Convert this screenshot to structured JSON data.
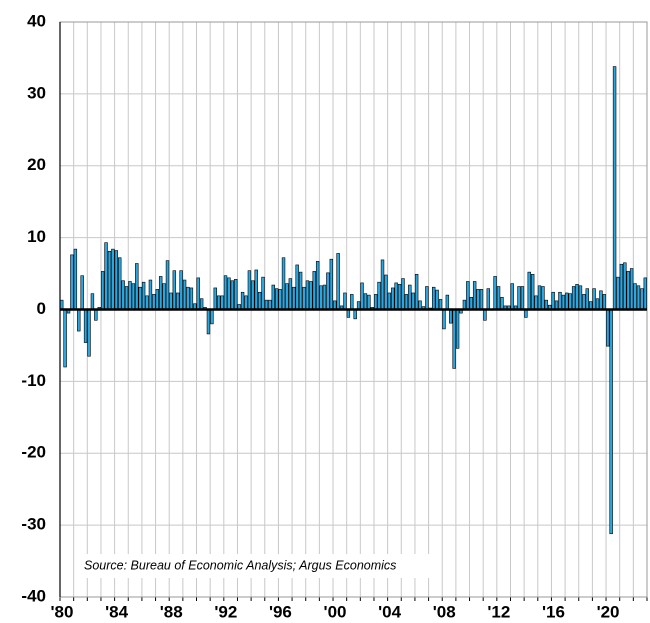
{
  "chart_data": {
    "type": "bar",
    "categories": [
      "'80",
      null,
      null,
      null,
      null,
      null,
      null,
      null,
      null,
      null,
      null,
      null,
      null,
      null,
      null,
      null,
      "'84",
      null,
      null,
      null,
      null,
      null,
      null,
      null,
      null,
      null,
      null,
      null,
      null,
      null,
      null,
      null,
      "'88",
      null,
      null,
      null,
      null,
      null,
      null,
      null,
      null,
      null,
      null,
      null,
      null,
      null,
      null,
      null,
      "'92",
      null,
      null,
      null,
      null,
      null,
      null,
      null,
      null,
      null,
      null,
      null,
      null,
      null,
      null,
      null,
      "'96",
      null,
      null,
      null,
      null,
      null,
      null,
      null,
      null,
      null,
      null,
      null,
      null,
      null,
      null,
      null,
      "'00",
      null,
      null,
      null,
      null,
      null,
      null,
      null,
      null,
      null,
      null,
      null,
      null,
      null,
      null,
      null,
      "'04",
      null,
      null,
      null,
      null,
      null,
      null,
      null,
      null,
      null,
      null,
      null,
      null,
      null,
      null,
      null,
      "'08",
      null,
      null,
      null,
      null,
      null,
      null,
      null,
      null,
      null,
      null,
      null,
      null,
      null,
      null,
      null,
      "'12",
      null,
      null,
      null,
      null,
      null,
      null,
      null,
      null,
      null,
      null,
      null,
      null,
      null,
      null,
      null,
      "'16",
      null,
      null,
      null,
      null,
      null,
      null,
      null,
      null,
      null,
      null,
      null,
      null,
      null,
      null,
      null,
      "'20",
      null,
      null,
      null,
      null,
      null,
      null,
      null,
      null,
      null,
      null,
      null
    ],
    "values": [
      1.3,
      -8.0,
      -0.5,
      7.6,
      8.4,
      -3.0,
      4.7,
      -4.6,
      -6.5,
      2.2,
      -1.5,
      0.3,
      5.3,
      9.3,
      8.1,
      8.4,
      8.2,
      7.2,
      4.0,
      3.2,
      3.9,
      3.6,
      6.4,
      3.1,
      3.8,
      1.9,
      4.1,
      2.1,
      2.8,
      4.6,
      3.6,
      6.8,
      2.3,
      5.4,
      2.3,
      5.4,
      4.1,
      3.1,
      3.0,
      0.8,
      4.4,
      1.5,
      0.3,
      -3.4,
      -2.0,
      3.0,
      1.9,
      1.9,
      4.7,
      4.4,
      4.0,
      4.2,
      0.7,
      2.4,
      1.9,
      5.4,
      4.0,
      5.5,
      2.4,
      4.5,
      1.3,
      1.3,
      3.4,
      2.9,
      2.8,
      7.2,
      3.6,
      4.3,
      3.1,
      6.2,
      5.2,
      3.1,
      4.0,
      3.9,
      5.3,
      6.7,
      3.3,
      3.4,
      5.1,
      7.0,
      1.2,
      7.8,
      0.5,
      2.3,
      -1.1,
      2.1,
      -1.3,
      1.1,
      3.7,
      2.2,
      2.0,
      0.3,
      2.1,
      3.8,
      6.9,
      4.8,
      2.3,
      3.0,
      3.7,
      3.5,
      4.3,
      2.1,
      3.4,
      2.3,
      4.9,
      1.2,
      0.4,
      3.2,
      0.2,
      3.1,
      2.7,
      1.4,
      -2.7,
      2.0,
      -1.9,
      -8.2,
      -5.4,
      -0.5,
      1.3,
      3.9,
      1.7,
      3.9,
      2.8,
      2.8,
      -1.5,
      2.9,
      -0.1,
      4.6,
      3.2,
      1.7,
      0.5,
      0.5,
      3.6,
      0.5,
      3.2,
      3.2,
      -1.1,
      5.2,
      4.9,
      1.9,
      3.3,
      3.2,
      1.3,
      0.6,
      2.4,
      1.2,
      2.4,
      2.0,
      2.3,
      2.2,
      3.2,
      3.5,
      3.3,
      2.1,
      2.9,
      1.1,
      2.9,
      1.5,
      2.6,
      2.1,
      -5.1,
      -31.2,
      33.8,
      4.5,
      6.3,
      6.5,
      5.3,
      5.7,
      3.6,
      3.3,
      2.9,
      4.4
    ],
    "color": "#2ba6de",
    "ylim": [
      -40,
      40
    ],
    "yticks": [
      -40,
      -30,
      -20,
      -10,
      0,
      10,
      20,
      30,
      40
    ],
    "grid": true,
    "annotation": "Source: Bureau of Economic Analysis; Argus Economics"
  }
}
